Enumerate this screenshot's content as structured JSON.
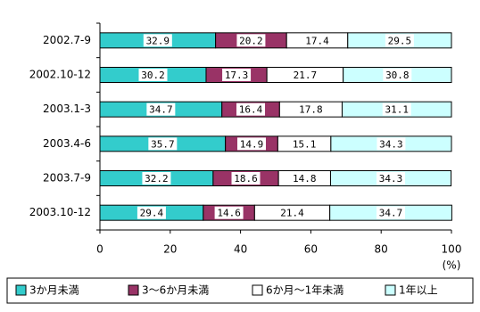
{
  "chart_data": {
    "type": "stacked-bar-horizontal",
    "categories": [
      "2002.7-9",
      "2002.10-12",
      "2003.1-3",
      "2003.4-6",
      "2003.7-9",
      "2003.10-12"
    ],
    "series": [
      {
        "name": "3か月未満",
        "color": "#33cccc",
        "values": [
          32.9,
          30.2,
          34.7,
          35.7,
          32.2,
          29.4
        ]
      },
      {
        "name": "3〜6か月未満",
        "color": "#993366",
        "values": [
          20.2,
          17.3,
          16.4,
          14.9,
          18.6,
          14.6
        ]
      },
      {
        "name": "6か月〜1年未満",
        "color": "#ffffff",
        "values": [
          17.4,
          21.7,
          17.8,
          15.1,
          14.8,
          21.4
        ]
      },
      {
        "name": "1年以上",
        "color": "#ccffff",
        "values": [
          29.5,
          30.8,
          31.1,
          34.3,
          34.3,
          34.7
        ]
      }
    ],
    "xlim": [
      0,
      100
    ],
    "xticks": [
      0,
      20,
      40,
      60,
      80,
      100
    ],
    "xlabel": "(%)",
    "legend": "bottom"
  }
}
